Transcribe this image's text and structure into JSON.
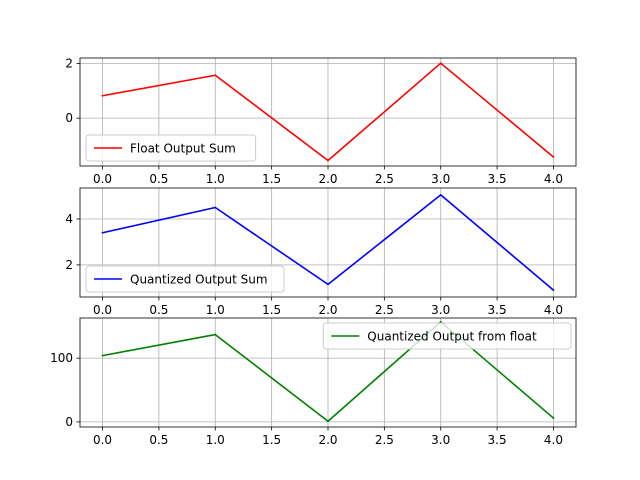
{
  "chart_data": [
    {
      "type": "line",
      "x": [
        0,
        1,
        2,
        3,
        4
      ],
      "series": [
        {
          "name": "Float Output Sum",
          "values": [
            0.82,
            1.57,
            -1.55,
            2.01,
            -1.42
          ],
          "color": "#ff0000"
        }
      ],
      "title": "",
      "xlabel": "",
      "ylabel": "",
      "xlim": [
        -0.2,
        4.2
      ],
      "ylim": [
        -1.75,
        2.2
      ],
      "xticks": [
        "0.0",
        "0.5",
        "1.0",
        "1.5",
        "2.0",
        "2.5",
        "3.0",
        "3.5",
        "4.0"
      ],
      "yticks": [
        "0",
        "2"
      ],
      "grid": true,
      "legend": "lower-left"
    },
    {
      "type": "line",
      "x": [
        0,
        1,
        2,
        3,
        4
      ],
      "series": [
        {
          "name": "Quantized Output Sum",
          "values": [
            3.4,
            4.5,
            1.15,
            5.05,
            0.9
          ],
          "color": "#0000ff"
        }
      ],
      "title": "",
      "xlabel": "",
      "ylabel": "",
      "xlim": [
        -0.2,
        4.2
      ],
      "ylim": [
        0.6,
        5.35
      ],
      "xticks": [
        "0.0",
        "0.5",
        "1.0",
        "1.5",
        "2.0",
        "2.5",
        "3.0",
        "3.5",
        "4.0"
      ],
      "yticks": [
        "2",
        "4"
      ],
      "grid": true,
      "legend": "lower-left"
    },
    {
      "type": "line",
      "x": [
        0,
        1,
        2,
        3,
        4
      ],
      "series": [
        {
          "name": "Quantized Output from float",
          "values": [
            104,
            137,
            1,
            157,
            6
          ],
          "color": "#008000"
        }
      ],
      "title": "",
      "xlabel": "",
      "ylabel": "",
      "xlim": [
        -0.2,
        4.2
      ],
      "ylim": [
        -8,
        163
      ],
      "xticks": [
        "0.0",
        "0.5",
        "1.0",
        "1.5",
        "2.0",
        "2.5",
        "3.0",
        "3.5",
        "4.0"
      ],
      "yticks": [
        "0",
        "100"
      ],
      "grid": true,
      "legend": "upper-right"
    }
  ]
}
